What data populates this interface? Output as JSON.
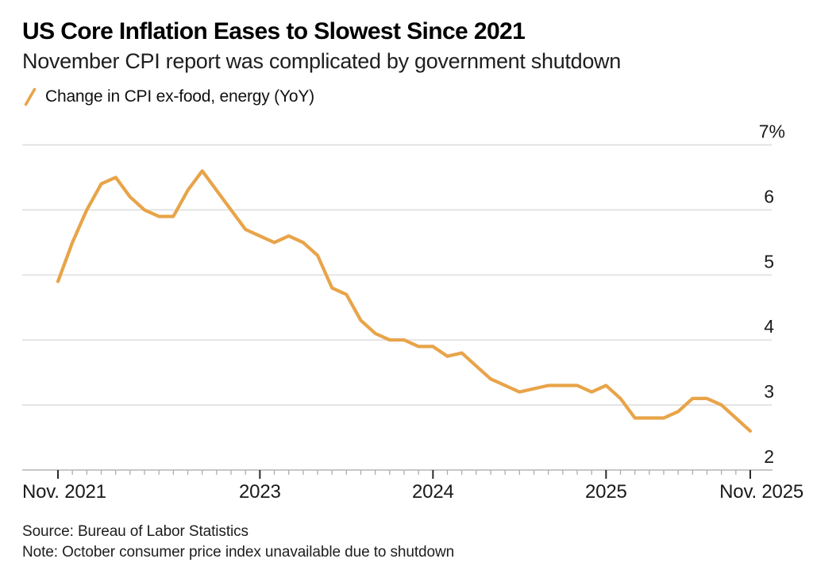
{
  "header": {
    "title": "US Core Inflation Eases to Slowest Since 2021",
    "subtitle": "November CPI report was complicated by government shutdown"
  },
  "legend": {
    "label": "Change in CPI ex-food, energy (YoY)"
  },
  "footer": {
    "source": "Source: Bureau of Labor Statistics",
    "note": "Note: October consumer price index unavailable due to shutdown"
  },
  "colors": {
    "line": "#E8A449",
    "gridline": "#E0E0E0",
    "axis_line": "#C8C8C8",
    "major_tick": "#2B2B2B",
    "minor_tick": "#ADADAD",
    "axis_text": "#1A1A1A"
  },
  "chart_data": {
    "type": "line",
    "title": "US Core Inflation Eases to Slowest Since 2021",
    "subtitle": "November CPI report was complicated by government shutdown",
    "unit": "%",
    "ylim": [
      2,
      7
    ],
    "grid": "horizontal-only",
    "y_axis_side": "right",
    "legend_position": "top-left",
    "gap_note": "Oct 2025 point missing due to government shutdown; line connects Sep 2025 to Nov 2025",
    "y_ticks": [
      {
        "label": "7%",
        "value": 7
      },
      {
        "label": "6",
        "value": 6
      },
      {
        "label": "5",
        "value": 5
      },
      {
        "label": "4",
        "value": 4
      },
      {
        "label": "3",
        "value": 3
      },
      {
        "label": "2",
        "value": 2
      }
    ],
    "x_ticks_major": [
      {
        "label": "Nov. 2021",
        "month_index": 0,
        "align": "start"
      },
      {
        "label": "2023",
        "month_index": 14,
        "align": "middle"
      },
      {
        "label": "2024",
        "month_index": 26,
        "align": "middle"
      },
      {
        "label": "2025",
        "month_index": 38,
        "align": "middle"
      },
      {
        "label": "Nov. 2025",
        "month_index": 48,
        "align": "end"
      }
    ],
    "x_minor_ticks": "monthly",
    "total_months": 48,
    "series": [
      {
        "name": "Change in CPI ex-food, energy (YoY)",
        "color": "#E8A449",
        "dates": [
          "Nov 2021",
          "Dec 2021",
          "Jan 2022",
          "Feb 2022",
          "Mar 2022",
          "Apr 2022",
          "May 2022",
          "Jun 2022",
          "Jul 2022",
          "Aug 2022",
          "Sep 2022",
          "Oct 2022",
          "Nov 2022",
          "Dec 2022",
          "Jan 2023",
          "Feb 2023",
          "Mar 2023",
          "Apr 2023",
          "May 2023",
          "Jun 2023",
          "Jul 2023",
          "Aug 2023",
          "Sep 2023",
          "Oct 2023",
          "Nov 2023",
          "Dec 2023",
          "Jan 2024",
          "Feb 2024",
          "Mar 2024",
          "Apr 2024",
          "May 2024",
          "Jun 2024",
          "Jul 2024",
          "Aug 2024",
          "Sep 2024",
          "Oct 2024",
          "Nov 2024",
          "Dec 2024",
          "Jan 2025",
          "Feb 2025",
          "Mar 2025",
          "Apr 2025",
          "May 2025",
          "Jun 2025",
          "Jul 2025",
          "Aug 2025",
          "Sep 2025",
          "Oct 2025",
          "Nov 2025"
        ],
        "values": [
          4.9,
          5.5,
          6.0,
          6.4,
          6.5,
          6.2,
          6.0,
          5.9,
          5.9,
          6.3,
          6.6,
          6.3,
          6.0,
          5.7,
          5.6,
          5.5,
          5.6,
          5.5,
          5.3,
          4.8,
          4.7,
          4.3,
          4.1,
          4.0,
          4.0,
          3.9,
          3.9,
          3.75,
          3.8,
          3.6,
          3.4,
          3.3,
          3.2,
          3.25,
          3.3,
          3.3,
          3.3,
          3.2,
          3.3,
          3.1,
          2.8,
          2.8,
          2.8,
          2.9,
          3.1,
          3.1,
          3.0,
          null,
          2.6
        ]
      }
    ]
  }
}
